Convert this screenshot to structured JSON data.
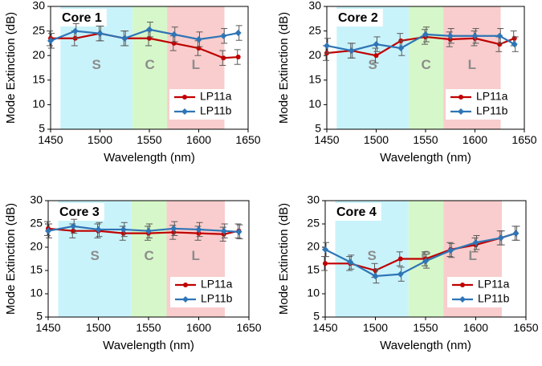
{
  "chart_data": [
    {
      "type": "line",
      "title": "Core 1",
      "xlabel": "Wavelength (nm)",
      "ylabel": "Mode Extinction (dB)",
      "xlim": [
        1450,
        1650
      ],
      "ylim": [
        5,
        30
      ],
      "xticks": [
        1450,
        1500,
        1550,
        1600,
        1650
      ],
      "yticks": [
        5,
        10,
        15,
        20,
        25,
        30
      ],
      "bands": [
        {
          "label": "S",
          "from": 1460,
          "to": 1533,
          "color": "#c9f3fb"
        },
        {
          "label": "C",
          "from": 1533,
          "to": 1568,
          "color": "#d6f7c9"
        },
        {
          "label": "L",
          "from": 1568,
          "to": 1626,
          "color": "#f9cdcd"
        }
      ],
      "legend_position": "bottom-right",
      "series": [
        {
          "name": "LP11a",
          "color": "#c00000",
          "x": [
            1450,
            1475,
            1500,
            1525,
            1550,
            1575,
            1600,
            1625,
            1640
          ],
          "y": [
            23.5,
            23.5,
            24.5,
            23.5,
            23.5,
            22.5,
            21.5,
            19.5,
            19.7
          ],
          "err": [
            1.5,
            1.5,
            1.5,
            1.5,
            1.5,
            1.5,
            1.5,
            1.5,
            1.5
          ]
        },
        {
          "name": "LP11b",
          "color": "#2e75b6",
          "x": [
            1450,
            1475,
            1500,
            1525,
            1550,
            1575,
            1600,
            1625,
            1640
          ],
          "y": [
            23,
            25,
            24.5,
            23.5,
            25.3,
            24.3,
            23.3,
            24,
            24.6
          ],
          "err": [
            1.5,
            1.5,
            1.5,
            1.5,
            1.5,
            1.5,
            1.5,
            1.5,
            1.5
          ]
        }
      ]
    },
    {
      "type": "line",
      "title": "Core 2",
      "xlabel": "Wavelength (nm)",
      "ylabel": "Mode Extinction (dB)",
      "xlim": [
        1450,
        1650
      ],
      "ylim": [
        5,
        30
      ],
      "xticks": [
        1450,
        1500,
        1550,
        1600,
        1650
      ],
      "yticks": [
        5,
        10,
        15,
        20,
        25,
        30
      ],
      "bands": [
        {
          "label": "S",
          "from": 1460,
          "to": 1533,
          "color": "#c9f3fb"
        },
        {
          "label": "C",
          "from": 1533,
          "to": 1568,
          "color": "#d6f7c9"
        },
        {
          "label": "L",
          "from": 1568,
          "to": 1626,
          "color": "#f9cdcd"
        }
      ],
      "legend_position": "bottom-right",
      "series": [
        {
          "name": "LP11a",
          "color": "#c00000",
          "x": [
            1450,
            1475,
            1500,
            1525,
            1550,
            1575,
            1600,
            1625,
            1640
          ],
          "y": [
            20.5,
            21,
            20,
            23,
            23.8,
            23.3,
            23.5,
            22.3,
            23.5
          ],
          "err": [
            1.5,
            1.5,
            1.5,
            1.5,
            1.5,
            1.5,
            1.5,
            1.5,
            1.5
          ]
        },
        {
          "name": "LP11b",
          "color": "#2e75b6",
          "x": [
            1450,
            1475,
            1500,
            1525,
            1550,
            1575,
            1600,
            1625,
            1640
          ],
          "y": [
            22,
            21,
            22.3,
            21.5,
            24.3,
            24,
            24,
            24,
            22.3
          ],
          "err": [
            1.5,
            1.5,
            1.5,
            1.5,
            1.5,
            1.5,
            1.5,
            1.5,
            1.5
          ]
        }
      ]
    },
    {
      "type": "line",
      "title": "Core 3",
      "xlabel": "Wavelength (nm)",
      "ylabel": "Mode Extinction (dB)",
      "xlim": [
        1450,
        1650
      ],
      "ylim": [
        5,
        30
      ],
      "xticks": [
        1450,
        1500,
        1550,
        1600,
        1650
      ],
      "yticks": [
        5,
        10,
        15,
        20,
        25,
        30
      ],
      "bands": [
        {
          "label": "S",
          "from": 1460,
          "to": 1533,
          "color": "#c9f3fb"
        },
        {
          "label": "C",
          "from": 1533,
          "to": 1568,
          "color": "#d6f7c9"
        },
        {
          "label": "L",
          "from": 1568,
          "to": 1626,
          "color": "#f9cdcd"
        }
      ],
      "legend_position": "bottom-right",
      "series": [
        {
          "name": "LP11a",
          "color": "#c00000",
          "x": [
            1450,
            1475,
            1500,
            1525,
            1550,
            1575,
            1600,
            1625,
            1640
          ],
          "y": [
            24,
            23.5,
            23.5,
            23,
            23,
            23.2,
            23,
            22.8,
            23.5
          ],
          "err": [
            1.5,
            1.5,
            1.5,
            1.5,
            1.5,
            1.5,
            1.5,
            1.5,
            1.5
          ]
        },
        {
          "name": "LP11b",
          "color": "#2e75b6",
          "x": [
            1450,
            1475,
            1500,
            1525,
            1550,
            1575,
            1600,
            1625,
            1640
          ],
          "y": [
            23.5,
            24.5,
            23.8,
            23.8,
            23.5,
            24,
            23.8,
            23.5,
            23.3
          ],
          "err": [
            1.5,
            1.5,
            1.5,
            1.5,
            1.5,
            1.5,
            1.5,
            1.5,
            1.5
          ]
        }
      ]
    },
    {
      "type": "line",
      "title": "Core 4",
      "xlabel": "Wavelength (nm)",
      "ylabel": "Mode Extinction (dB)",
      "xlim": [
        1450,
        1650
      ],
      "ylim": [
        5,
        30
      ],
      "xticks": [
        1450,
        1500,
        1550,
        1600,
        1650
      ],
      "yticks": [
        5,
        10,
        15,
        20,
        25,
        30
      ],
      "bands": [
        {
          "label": "S",
          "from": 1460,
          "to": 1533,
          "color": "#c9f3fb"
        },
        {
          "label": "C",
          "from": 1533,
          "to": 1568,
          "color": "#d6f7c9"
        },
        {
          "label": "L",
          "from": 1568,
          "to": 1626,
          "color": "#f9cdcd"
        }
      ],
      "legend_position": "bottom-right",
      "series": [
        {
          "name": "LP11a",
          "color": "#c00000",
          "x": [
            1450,
            1475,
            1500,
            1525,
            1550,
            1575,
            1600,
            1625,
            1640
          ],
          "y": [
            16.5,
            16.5,
            15,
            17.5,
            17.5,
            19.5,
            20.5,
            22,
            23
          ],
          "err": [
            1.5,
            1.5,
            1.5,
            1.5,
            1.5,
            1.5,
            1.5,
            1.5,
            1.5
          ]
        },
        {
          "name": "LP11b",
          "color": "#2e75b6",
          "x": [
            1450,
            1475,
            1500,
            1525,
            1550,
            1575,
            1600,
            1625,
            1640
          ],
          "y": [
            19.5,
            16.8,
            13.8,
            14.2,
            17,
            19.3,
            21,
            22,
            23
          ],
          "err": [
            1.5,
            1.5,
            1.5,
            1.5,
            1.5,
            1.5,
            1.5,
            1.5,
            1.5
          ]
        }
      ]
    }
  ]
}
